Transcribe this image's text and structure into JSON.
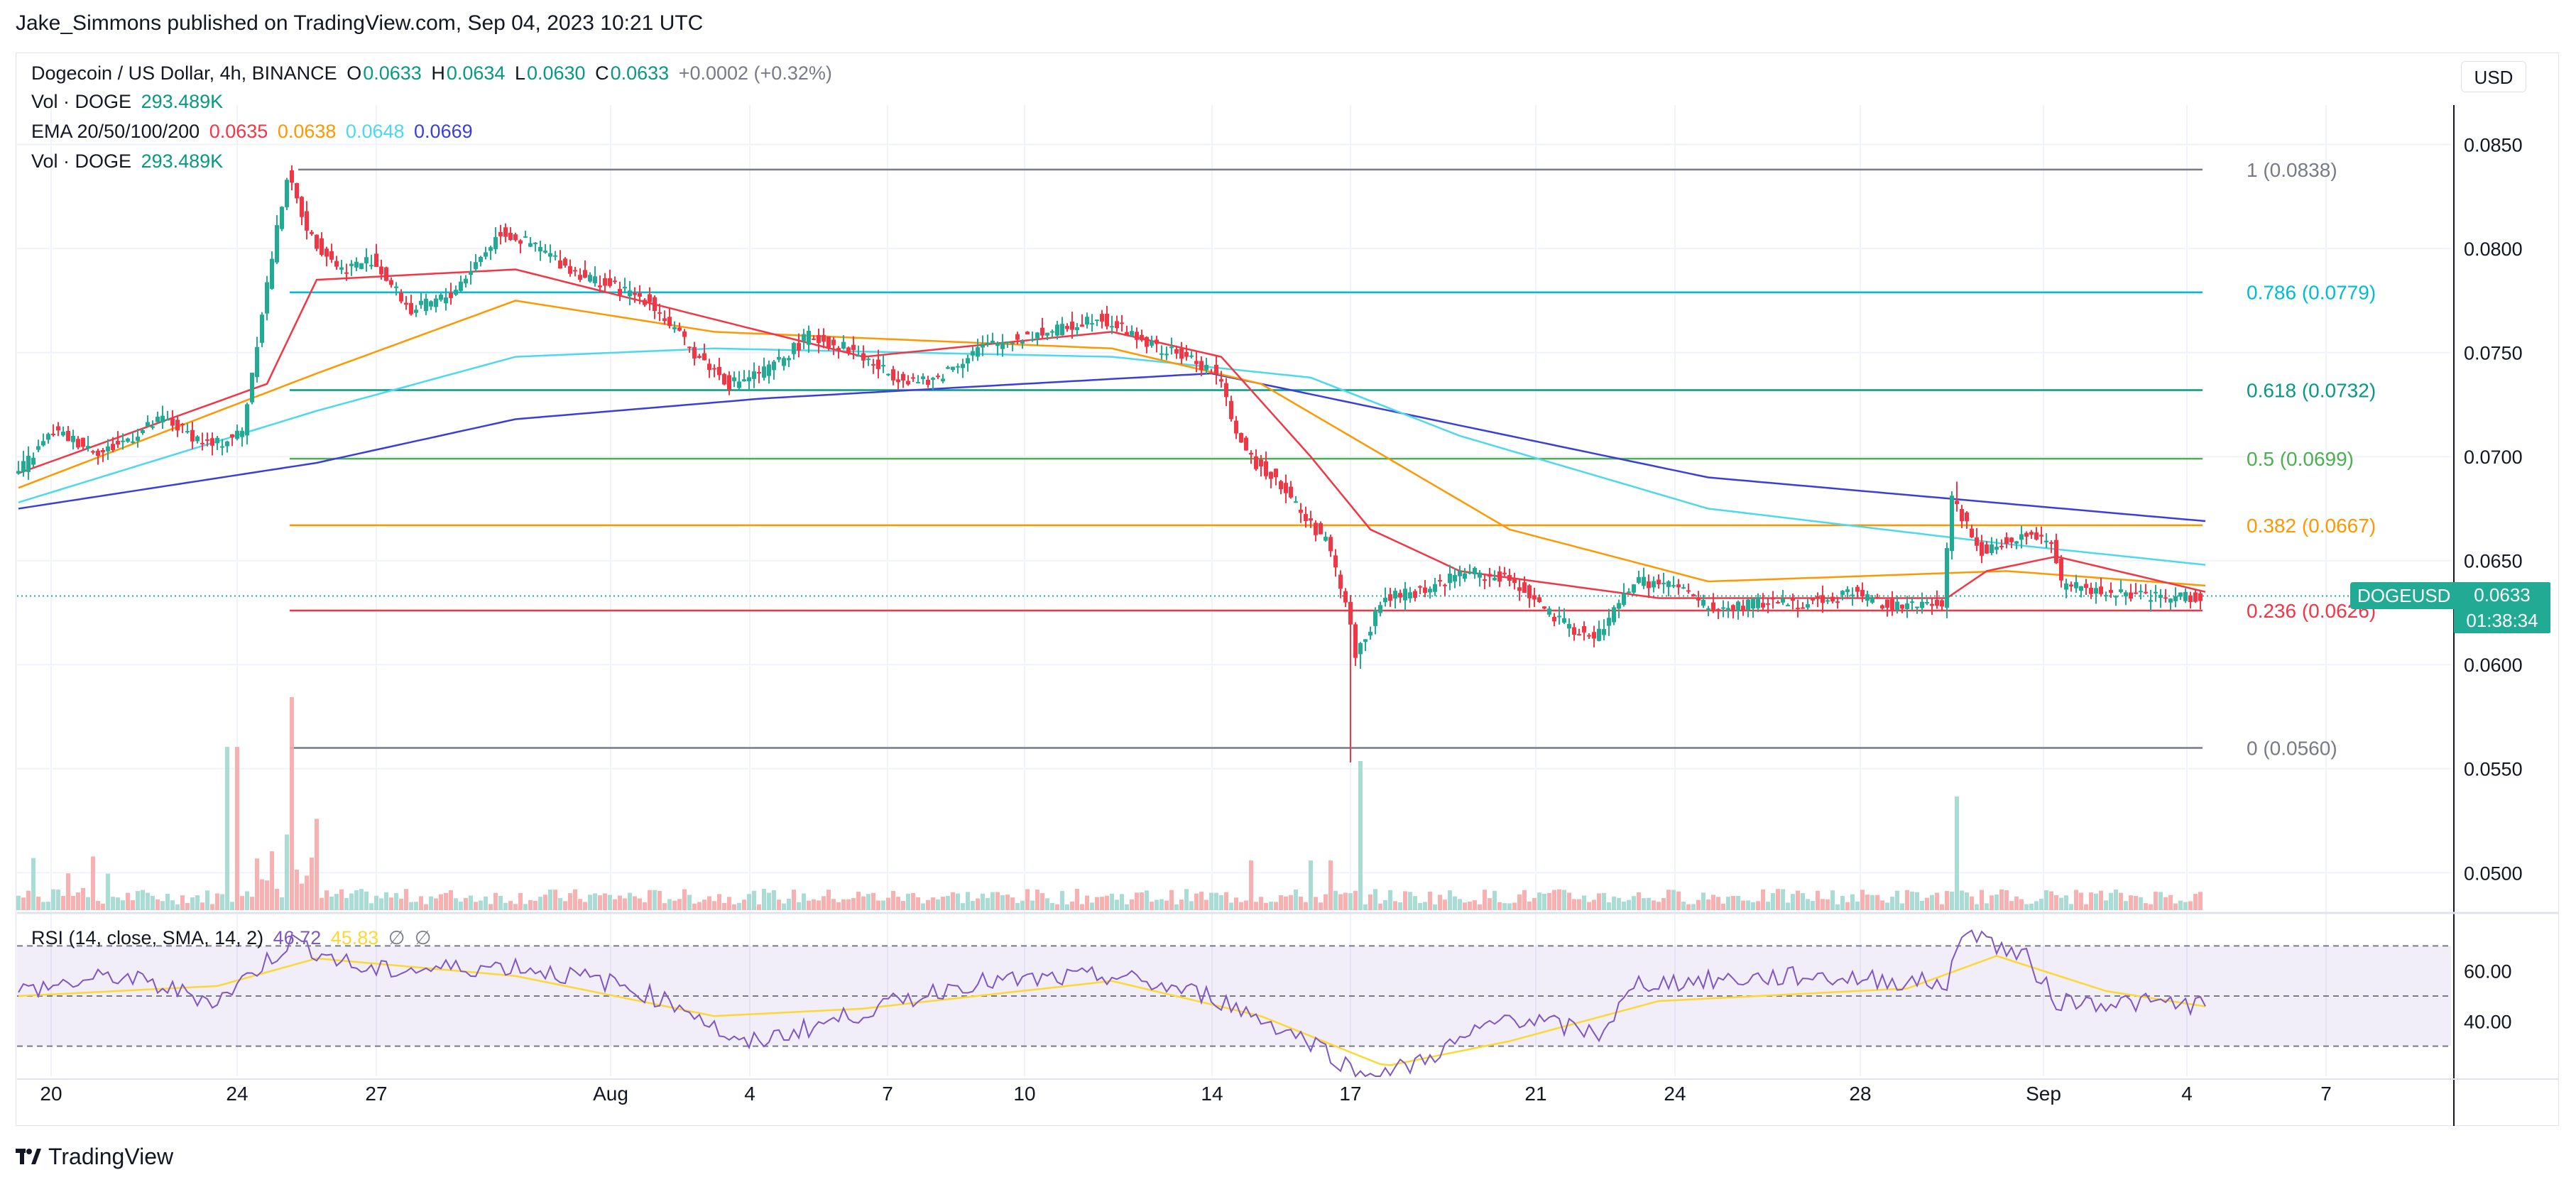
{
  "header": {
    "publisher": "Jake_Simmons published on TradingView.com, Sep 04, 2023 10:21 UTC"
  },
  "legend": {
    "symbol": "Dogecoin / US Dollar, 4h, BINANCE",
    "o_label": "O",
    "o": "0.0633",
    "h_label": "H",
    "h": "0.0634",
    "l_label": "L",
    "l": "0.0630",
    "c_label": "C",
    "c": "0.0633",
    "change": "+0.0002 (+0.32%)",
    "vol1_label": "Vol · DOGE",
    "vol1": "293.489K",
    "ema_label": "EMA 20/50/100/200",
    "ema20": "0.0635",
    "ema50": "0.0638",
    "ema100": "0.0648",
    "ema200": "0.0669",
    "vol2_label": "Vol · DOGE",
    "vol2": "293.489K"
  },
  "rsi_legend": {
    "label": "RSI (14, close, SMA, 14, 2)",
    "rsi": "46.72",
    "sma": "45.83",
    "na1": "∅",
    "na2": "∅"
  },
  "currency_button": "USD",
  "last_price": {
    "symbol": "DOGEUSD",
    "price": "0.0633",
    "countdown": "01:38:34"
  },
  "brand": "TradingView",
  "colors": {
    "up": "#22ab94",
    "down": "#f23645",
    "ema20": "#f23645",
    "ema50": "#ff9800",
    "ema100": "#4dd8ee",
    "ema200": "#3c3fd6",
    "fib_1": "#787b86",
    "fib_0786": "#00bcd4",
    "fib_0618": "#089981",
    "fib_05": "#4caf50",
    "fib_0382": "#ff9800",
    "fib_0236": "#f23645",
    "fib_0": "#787b86",
    "rsi": "#7e57c2",
    "rsi_sma": "#fdd835"
  },
  "chart_data": {
    "type": "candlestick",
    "timeframe": "4h",
    "y_axis": {
      "ticks": [
        "0.0850",
        "0.0800",
        "0.0750",
        "0.0700",
        "0.0650",
        "0.0600",
        "0.0550",
        "0.0500"
      ],
      "range": [
        0.0482,
        0.0869
      ]
    },
    "x_axis": {
      "ticks": [
        "20",
        "24",
        "27",
        "Aug",
        "4",
        "7",
        "10",
        "14",
        "17",
        "21",
        "24",
        "28",
        "Sep",
        "4",
        "7"
      ]
    },
    "fibonacci": [
      {
        "level": "1",
        "price": 0.0838,
        "label": "1 (0.0838)"
      },
      {
        "level": "0.786",
        "price": 0.0779,
        "label": "0.786 (0.0779)"
      },
      {
        "level": "0.618",
        "price": 0.0732,
        "label": "0.618 (0.0732)"
      },
      {
        "level": "0.5",
        "price": 0.0699,
        "label": "0.5 (0.0699)"
      },
      {
        "level": "0.382",
        "price": 0.0667,
        "label": "0.382 (0.0667)"
      },
      {
        "level": "0.236",
        "price": 0.0626,
        "label": "0.236 (0.0626)"
      },
      {
        "level": "0",
        "price": 0.056,
        "label": "0 (0.0560)"
      }
    ],
    "price_path": [
      [
        0,
        0.069
      ],
      [
        8,
        0.0712
      ],
      [
        18,
        0.0702
      ],
      [
        30,
        0.0718
      ],
      [
        40,
        0.0705
      ],
      [
        46,
        0.0712
      ],
      [
        50,
        0.077
      ],
      [
        55,
        0.0835
      ],
      [
        60,
        0.0805
      ],
      [
        66,
        0.079
      ],
      [
        72,
        0.0795
      ],
      [
        80,
        0.077
      ],
      [
        88,
        0.0778
      ],
      [
        98,
        0.0808
      ],
      [
        106,
        0.08
      ],
      [
        112,
        0.079
      ],
      [
        120,
        0.0782
      ],
      [
        128,
        0.0775
      ],
      [
        136,
        0.0752
      ],
      [
        144,
        0.0735
      ],
      [
        152,
        0.0742
      ],
      [
        160,
        0.0758
      ],
      [
        168,
        0.0752
      ],
      [
        176,
        0.074
      ],
      [
        184,
        0.0735
      ],
      [
        194,
        0.0752
      ],
      [
        204,
        0.0758
      ],
      [
        212,
        0.0762
      ],
      [
        218,
        0.0768
      ],
      [
        224,
        0.076
      ],
      [
        230,
        0.0752
      ],
      [
        236,
        0.0748
      ],
      [
        242,
        0.074
      ],
      [
        248,
        0.07
      ],
      [
        254,
        0.069
      ],
      [
        260,
        0.067
      ],
      [
        264,
        0.066
      ],
      [
        268,
        0.063
      ],
      [
        270,
        0.0605
      ],
      [
        276,
        0.0632
      ],
      [
        284,
        0.0636
      ],
      [
        292,
        0.0645
      ],
      [
        302,
        0.064
      ],
      [
        310,
        0.0622
      ],
      [
        318,
        0.0612
      ],
      [
        326,
        0.064
      ],
      [
        334,
        0.0638
      ],
      [
        342,
        0.0626
      ],
      [
        352,
        0.063
      ],
      [
        362,
        0.063
      ],
      [
        370,
        0.0635
      ],
      [
        378,
        0.0628
      ],
      [
        384,
        0.0628
      ],
      [
        388,
        0.063
      ],
      [
        390,
        0.068
      ],
      [
        396,
        0.0655
      ],
      [
        404,
        0.0662
      ],
      [
        410,
        0.066
      ],
      [
        412,
        0.0638
      ],
      [
        420,
        0.0635
      ],
      [
        430,
        0.0632
      ],
      [
        440,
        0.0633
      ]
    ],
    "ema_paths": {
      "ema20": [
        [
          0,
          0.0692
        ],
        [
          50,
          0.0735
        ],
        [
          60,
          0.0785
        ],
        [
          100,
          0.079
        ],
        [
          130,
          0.0772
        ],
        [
          170,
          0.0748
        ],
        [
          220,
          0.076
        ],
        [
          242,
          0.0748
        ],
        [
          260,
          0.07
        ],
        [
          272,
          0.0665
        ],
        [
          290,
          0.0645
        ],
        [
          330,
          0.0632
        ],
        [
          388,
          0.0632
        ],
        [
          396,
          0.0645
        ],
        [
          410,
          0.0652
        ],
        [
          440,
          0.0635
        ]
      ],
      "ema50": [
        [
          0,
          0.0685
        ],
        [
          60,
          0.074
        ],
        [
          100,
          0.0775
        ],
        [
          140,
          0.076
        ],
        [
          220,
          0.0752
        ],
        [
          250,
          0.0735
        ],
        [
          275,
          0.07
        ],
        [
          300,
          0.0665
        ],
        [
          340,
          0.064
        ],
        [
          400,
          0.0645
        ],
        [
          440,
          0.0638
        ]
      ],
      "ema100": [
        [
          0,
          0.0678
        ],
        [
          60,
          0.0722
        ],
        [
          100,
          0.0748
        ],
        [
          140,
          0.0752
        ],
        [
          220,
          0.0748
        ],
        [
          260,
          0.0738
        ],
        [
          290,
          0.071
        ],
        [
          340,
          0.0675
        ],
        [
          400,
          0.0658
        ],
        [
          440,
          0.0648
        ]
      ],
      "ema200": [
        [
          0,
          0.0675
        ],
        [
          60,
          0.0697
        ],
        [
          100,
          0.0718
        ],
        [
          150,
          0.0728
        ],
        [
          240,
          0.074
        ],
        [
          270,
          0.0725
        ],
        [
          340,
          0.069
        ],
        [
          440,
          0.0669
        ]
      ]
    },
    "rsi": {
      "range": [
        18,
        82
      ],
      "ticks": [
        "60.00",
        "40.00"
      ],
      "band": [
        30,
        70
      ],
      "rsi_path": [
        [
          0,
          52
        ],
        [
          20,
          58
        ],
        [
          40,
          48
        ],
        [
          55,
          72
        ],
        [
          70,
          60
        ],
        [
          100,
          62
        ],
        [
          120,
          55
        ],
        [
          135,
          45
        ],
        [
          145,
          30
        ],
        [
          160,
          38
        ],
        [
          190,
          55
        ],
        [
          220,
          58
        ],
        [
          240,
          50
        ],
        [
          262,
          30
        ],
        [
          270,
          18
        ],
        [
          280,
          22
        ],
        [
          300,
          42
        ],
        [
          318,
          35
        ],
        [
          326,
          55
        ],
        [
          360,
          58
        ],
        [
          388,
          55
        ],
        [
          392,
          78
        ],
        [
          398,
          70
        ],
        [
          404,
          65
        ],
        [
          410,
          48
        ],
        [
          440,
          46.72
        ]
      ],
      "sma_path": [
        [
          0,
          50
        ],
        [
          40,
          54
        ],
        [
          60,
          65
        ],
        [
          100,
          58
        ],
        [
          140,
          42
        ],
        [
          170,
          45
        ],
        [
          220,
          56
        ],
        [
          250,
          42
        ],
        [
          275,
          22
        ],
        [
          300,
          32
        ],
        [
          330,
          48
        ],
        [
          380,
          53
        ],
        [
          398,
          66
        ],
        [
          420,
          52
        ],
        [
          440,
          45.83
        ]
      ]
    }
  }
}
